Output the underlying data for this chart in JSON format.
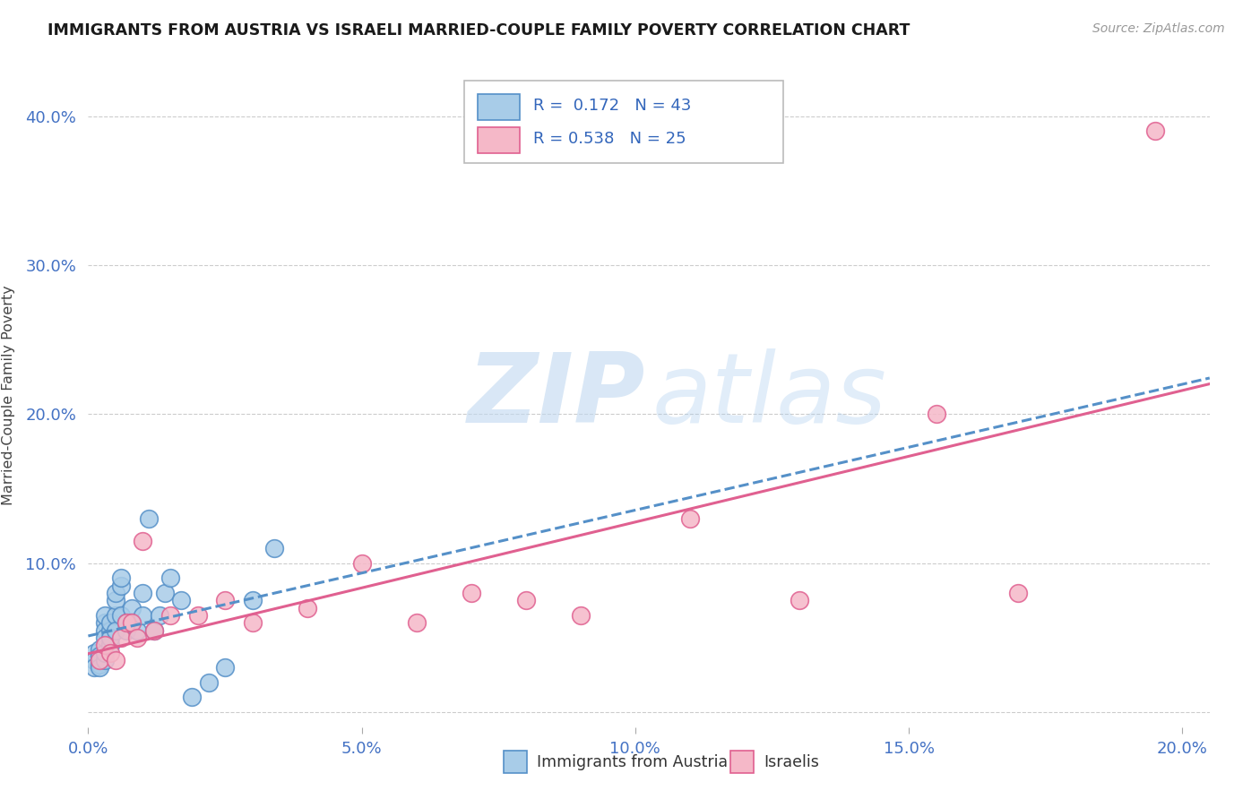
{
  "title": "IMMIGRANTS FROM AUSTRIA VS ISRAELI MARRIED-COUPLE FAMILY POVERTY CORRELATION CHART",
  "source": "Source: ZipAtlas.com",
  "ylabel": "Married-Couple Family Poverty",
  "xlim": [
    0.0,
    0.205
  ],
  "ylim": [
    -0.01,
    0.435
  ],
  "xticks": [
    0.0,
    0.05,
    0.1,
    0.15,
    0.2
  ],
  "yticks": [
    0.0,
    0.1,
    0.2,
    0.3,
    0.4
  ],
  "xtick_labels": [
    "0.0%",
    "5.0%",
    "10.0%",
    "15.0%",
    "20.0%"
  ],
  "ytick_labels": [
    "",
    "10.0%",
    "20.0%",
    "30.0%",
    "40.0%"
  ],
  "legend_label1": "Immigrants from Austria",
  "legend_label2": "Israelis",
  "r1": "0.172",
  "n1": "43",
  "r2": "0.538",
  "n2": "25",
  "color_blue": "#a8cce8",
  "color_pink": "#f5b8c8",
  "color_blue_line": "#5590c8",
  "color_pink_line": "#e06090",
  "austria_x": [
    0.001,
    0.001,
    0.001,
    0.002,
    0.002,
    0.002,
    0.002,
    0.002,
    0.003,
    0.003,
    0.003,
    0.003,
    0.003,
    0.003,
    0.004,
    0.004,
    0.004,
    0.004,
    0.005,
    0.005,
    0.005,
    0.005,
    0.006,
    0.006,
    0.006,
    0.007,
    0.007,
    0.008,
    0.008,
    0.009,
    0.01,
    0.01,
    0.011,
    0.012,
    0.013,
    0.014,
    0.015,
    0.017,
    0.019,
    0.022,
    0.025,
    0.03,
    0.034
  ],
  "austria_y": [
    0.04,
    0.035,
    0.03,
    0.038,
    0.032,
    0.042,
    0.038,
    0.03,
    0.035,
    0.06,
    0.055,
    0.04,
    0.05,
    0.065,
    0.055,
    0.06,
    0.045,
    0.05,
    0.065,
    0.075,
    0.055,
    0.08,
    0.085,
    0.09,
    0.065,
    0.055,
    0.06,
    0.07,
    0.06,
    0.055,
    0.065,
    0.08,
    0.13,
    0.055,
    0.065,
    0.08,
    0.09,
    0.075,
    0.01,
    0.02,
    0.03,
    0.075,
    0.11
  ],
  "israeli_x": [
    0.002,
    0.003,
    0.004,
    0.005,
    0.006,
    0.007,
    0.008,
    0.009,
    0.01,
    0.012,
    0.015,
    0.02,
    0.025,
    0.03,
    0.04,
    0.05,
    0.06,
    0.07,
    0.08,
    0.09,
    0.11,
    0.13,
    0.155,
    0.17,
    0.195
  ],
  "israeli_y": [
    0.035,
    0.045,
    0.04,
    0.035,
    0.05,
    0.06,
    0.06,
    0.05,
    0.115,
    0.055,
    0.065,
    0.065,
    0.075,
    0.06,
    0.07,
    0.1,
    0.06,
    0.08,
    0.075,
    0.065,
    0.13,
    0.075,
    0.2,
    0.08,
    0.39
  ]
}
